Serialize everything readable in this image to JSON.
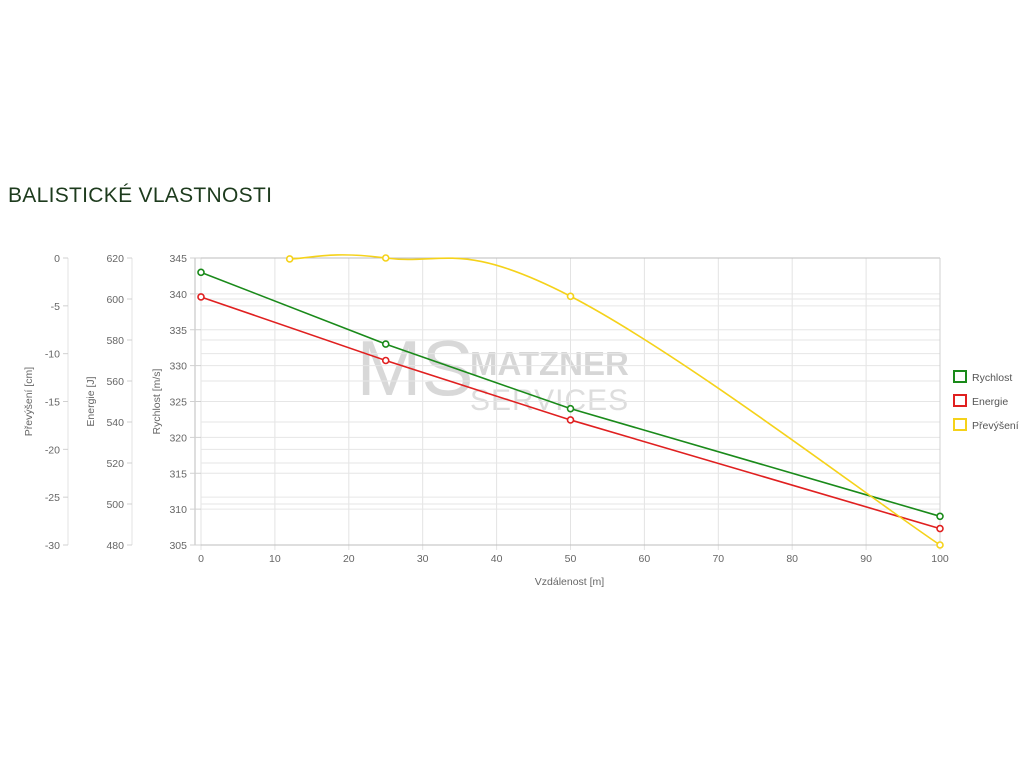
{
  "page": {
    "title": "BALISTICKÉ VLASTNOSTI"
  },
  "watermark": {
    "line1": "MATZNER",
    "line2": "SERVICES",
    "monogram": "MS"
  },
  "chart_data": {
    "type": "line",
    "title": "",
    "x": {
      "label": "Vzdálenost [m]",
      "min": 0,
      "max": 100,
      "ticks": [
        "0",
        "10",
        "20",
        "30",
        "40",
        "50",
        "60",
        "70",
        "80",
        "90",
        "100"
      ]
    },
    "axes": [
      {
        "id": "speed",
        "label": "Rychlost [m/s]",
        "min": 305,
        "max": 345,
        "ticks": [
          "305",
          "310",
          "315",
          "320",
          "325",
          "330",
          "335",
          "340",
          "345"
        ]
      },
      {
        "id": "energy",
        "label": "Energie [J]",
        "min": 480,
        "max": 620,
        "ticks": [
          "480",
          "500",
          "520",
          "540",
          "560",
          "580",
          "600",
          "620"
        ]
      },
      {
        "id": "drop",
        "label": "Převýšení [cm]",
        "min": -30,
        "max": 0,
        "ticks": [
          "-30",
          "-25",
          "-20",
          "-15",
          "-10",
          "-5",
          "0"
        ]
      }
    ],
    "series": [
      {
        "name": "Rychlost",
        "axis": "speed",
        "color": "#1a8a1a",
        "smooth": false,
        "points": [
          [
            0,
            343
          ],
          [
            25,
            333
          ],
          [
            50,
            324
          ],
          [
            100,
            309
          ]
        ]
      },
      {
        "name": "Energie",
        "axis": "energy",
        "color": "#e02020",
        "smooth": false,
        "points": [
          [
            0,
            601
          ],
          [
            25,
            570
          ],
          [
            50,
            541
          ],
          [
            100,
            488
          ]
        ]
      },
      {
        "name": "Převýšení",
        "axis": "drop",
        "color": "#f5d21a",
        "smooth": true,
        "points": [
          [
            12,
            -0.1
          ],
          [
            25,
            0
          ],
          [
            50,
            -4
          ],
          [
            100,
            -30
          ]
        ]
      }
    ],
    "legend": "right",
    "grid": true
  }
}
